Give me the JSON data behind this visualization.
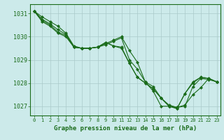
{
  "title": "Graphe pression niveau de la mer (hPa)",
  "background_color": "#cceaea",
  "grid_color": "#aacaca",
  "line_color": "#1a6b1a",
  "marker_color": "#1a6b1a",
  "xlim": [
    -0.5,
    23.5
  ],
  "ylim": [
    1026.6,
    1031.4
  ],
  "yticks": [
    1027,
    1028,
    1029,
    1030,
    1031
  ],
  "xticks": [
    0,
    1,
    2,
    3,
    4,
    5,
    6,
    7,
    8,
    9,
    10,
    11,
    12,
    13,
    14,
    15,
    16,
    17,
    18,
    19,
    20,
    21,
    22,
    23
  ],
  "series": [
    [
      1031.1,
      1030.85,
      1030.65,
      1030.45,
      1030.15,
      1029.6,
      1029.5,
      1029.5,
      1029.55,
      1029.65,
      1029.8,
      1029.95,
      1029.0,
      1028.6,
      1028.05,
      1027.65,
      1027.0,
      1027.0,
      1026.95,
      1027.0,
      1027.85,
      1028.2,
      1028.15,
      1028.05
    ],
    [
      1031.1,
      1030.75,
      1030.55,
      1030.3,
      1030.1,
      1029.55,
      1029.5,
      1029.5,
      1029.55,
      1029.7,
      1029.85,
      1030.0,
      1029.4,
      1028.9,
      1028.05,
      1027.85,
      1027.35,
      1027.05,
      1026.95,
      1027.05,
      1027.5,
      1027.8,
      1028.2,
      1028.05
    ],
    [
      1031.1,
      1030.7,
      1030.5,
      1030.2,
      1030.05,
      1029.55,
      1029.5,
      1029.5,
      1029.55,
      1029.75,
      1029.6,
      1029.55,
      1028.85,
      1028.25,
      1028.0,
      1027.75,
      1027.35,
      1027.0,
      1026.9,
      1027.55,
      1028.05,
      1028.25,
      1028.2,
      1028.05
    ],
    [
      1031.1,
      1030.65,
      1030.45,
      1030.15,
      1030.0,
      1029.55,
      1029.5,
      1029.5,
      1029.55,
      1029.75,
      1029.6,
      1029.5,
      1028.85,
      1028.25,
      1028.0,
      1027.75,
      1027.35,
      1027.0,
      1026.9,
      1027.55,
      1028.0,
      1028.25,
      1028.2,
      1028.05
    ]
  ]
}
